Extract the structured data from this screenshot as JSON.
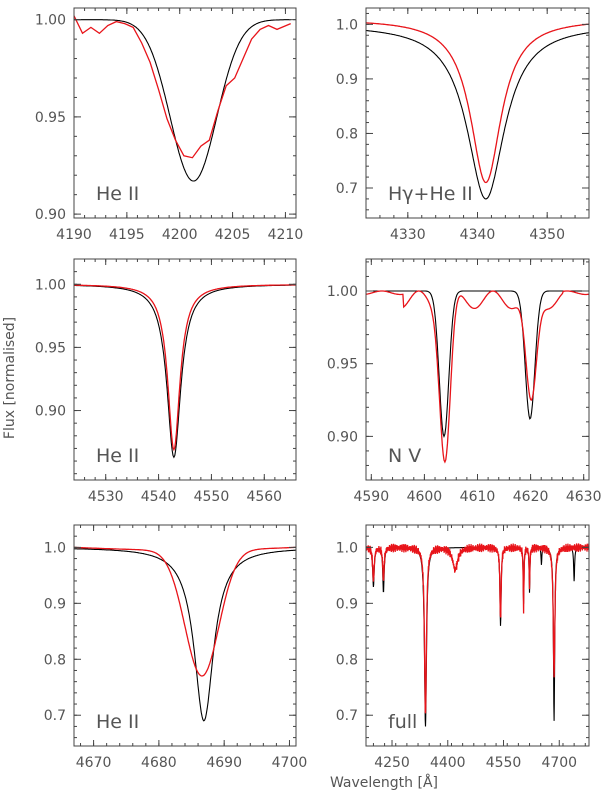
{
  "figure": {
    "ylabel": "Flux [normalised]",
    "xlabel": "Wavelength [Å]"
  },
  "colors": {
    "model": "#000000",
    "observed": "#e8141a",
    "axis": "#555555"
  },
  "chart_data": [
    {
      "type": "line",
      "label": "He II",
      "xlim": [
        4190,
        4211
      ],
      "ylim": [
        0.898,
        1.006
      ],
      "xticks": [
        4190,
        4195,
        4200,
        4205,
        4210
      ],
      "yticks": [
        0.9,
        0.95,
        1.0
      ],
      "series": [
        {
          "color": "#000000",
          "profile": "gauss",
          "center": 4201.3,
          "depth": 0.083,
          "sigma": 2.2,
          "x": [
            4190,
            4210.5
          ]
        },
        {
          "color": "#e8141a",
          "x": [
            4190,
            4190.8,
            4191.6,
            4192.4,
            4193.2,
            4194,
            4194.8,
            4195.6,
            4196.4,
            4197.2,
            4198,
            4198.8,
            4199.6,
            4200.4,
            4201.2,
            4202,
            4202.8,
            4203.6,
            4204.4,
            4205.2,
            4206,
            4206.8,
            4207.6,
            4208.4,
            4209.2,
            4210.5
          ],
          "y": [
            1.002,
            0.993,
            0.996,
            0.993,
            0.997,
            0.999,
            0.998,
            0.996,
            0.988,
            0.978,
            0.964,
            0.949,
            0.938,
            0.93,
            0.929,
            0.935,
            0.938,
            0.953,
            0.966,
            0.97,
            0.98,
            0.99,
            0.995,
            0.997,
            0.995,
            0.998
          ]
        }
      ]
    },
    {
      "type": "line",
      "label": "Hγ+He II",
      "xlim": [
        4324,
        4356
      ],
      "ylim": [
        0.645,
        1.03
      ],
      "xticks": [
        4330,
        4340,
        4350
      ],
      "yticks": [
        0.7,
        0.8,
        0.9,
        1.0
      ],
      "series": [
        {
          "color": "#000000",
          "profile": "lorentz",
          "center": 4341.2,
          "depth": 0.32,
          "gamma": 3.3,
          "x": [
            4324,
            4356
          ]
        },
        {
          "color": "#e8141a",
          "profile": "lorentz",
          "center": 4341.2,
          "depth": 0.3,
          "gamma": 2.7,
          "offset": 0.01,
          "x": [
            4324,
            4356
          ]
        }
      ]
    },
    {
      "type": "line",
      "label": "He II",
      "xlim": [
        4524,
        4566
      ],
      "ylim": [
        0.845,
        1.02
      ],
      "xticks": [
        4530,
        4540,
        4550,
        4560
      ],
      "yticks": [
        0.9,
        0.95,
        1.0
      ],
      "series": [
        {
          "color": "#000000",
          "profile": "lorentz",
          "center": 4542.9,
          "depth": 0.137,
          "gamma": 1.6,
          "x": [
            4524,
            4566
          ]
        },
        {
          "color": "#e8141a",
          "profile": "lorentz",
          "center": 4542.9,
          "depth": 0.131,
          "gamma": 1.4,
          "x": [
            4524,
            4566
          ]
        }
      ]
    },
    {
      "type": "line",
      "label": "N V",
      "xlim": [
        4589,
        4631
      ],
      "ylim": [
        0.87,
        1.022
      ],
      "xticks": [
        4590,
        4600,
        4610,
        4620,
        4630
      ],
      "yticks": [
        0.9,
        0.95,
        1.0
      ],
      "series": [
        {
          "color": "#000000",
          "profile": "double",
          "center": 4603.7,
          "center2": 4619.9,
          "depth": 0.1,
          "depth2": 0.088,
          "sigma": 0.9,
          "x": [
            4589,
            4631
          ]
        },
        {
          "color": "#e8141a",
          "profile": "double",
          "center": 4603.9,
          "center2": 4620.1,
          "depth": 0.11,
          "depth2": 0.075,
          "sigma": 1.0,
          "wobble": 0.012,
          "x": [
            4589,
            4631
          ]
        }
      ]
    },
    {
      "type": "line",
      "label": "He II",
      "xlim": [
        4667,
        4701
      ],
      "ylim": [
        0.645,
        1.04
      ],
      "xticks": [
        4670,
        4680,
        4690,
        4700
      ],
      "yticks": [
        0.7,
        0.8,
        0.9,
        1.0
      ],
      "series": [
        {
          "color": "#000000",
          "profile": "lorentz",
          "center": 4686.9,
          "depth": 0.31,
          "gamma": 1.8,
          "x": [
            4667,
            4701
          ]
        },
        {
          "color": "#e8141a",
          "profile": "gauss",
          "center": 4686.6,
          "depth": 0.225,
          "sigma": 2.6,
          "slope": 0.005,
          "x": [
            4667,
            4701
          ]
        }
      ]
    },
    {
      "type": "line",
      "label": "full",
      "xlim": [
        4180,
        4780
      ],
      "ylim": [
        0.645,
        1.04
      ],
      "xticks": [
        4250,
        4400,
        4550,
        4700
      ],
      "yticks": [
        0.7,
        0.8,
        0.9,
        1.0
      ],
      "series": [
        {
          "color": "#000000",
          "profile": "multi",
          "lines": [
            [
              4200,
              0.07,
              2.4
            ],
            [
              4227,
              0.08,
              2.2
            ],
            [
              4340,
              0.32,
              3.3
            ],
            [
              4542,
              0.14,
              2.0
            ],
            [
              4604,
              0.1,
              1.2
            ],
            [
              4620,
              0.08,
              1.2
            ],
            [
              4652,
              0.03,
              1.2
            ],
            [
              4686,
              0.31,
              2.0
            ],
            [
              4740,
              0.06,
              1.5
            ]
          ],
          "x": [
            4180,
            4780
          ]
        },
        {
          "color": "#e8141a",
          "profile": "multi",
          "noise": 0.008,
          "lines": [
            [
              4200,
              0.06,
              2.4
            ],
            [
              4227,
              0.06,
              2.2
            ],
            [
              4340,
              0.3,
              3.0
            ],
            [
              4420,
              0.04,
              8.0
            ],
            [
              4542,
              0.13,
              2.0
            ],
            [
              4604,
              0.11,
              1.2
            ],
            [
              4620,
              0.07,
              1.2
            ],
            [
              4686,
              0.23,
              2.6
            ]
          ],
          "x": [
            4180,
            4780
          ]
        }
      ]
    }
  ]
}
